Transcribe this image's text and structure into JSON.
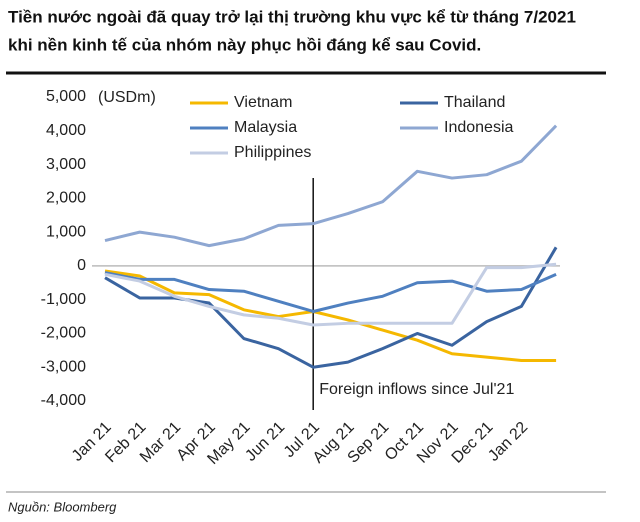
{
  "chart_data": {
    "type": "line",
    "title": [
      "Tiền nước ngoài đã quay trở lại thị trường khu vực kể từ tháng 7/2021",
      "khi nền kinh tế của nhóm này phục hồi đáng kể sau Covid."
    ],
    "y_unit": "(USDm)",
    "annotation": {
      "text": "Foreign inflows since Jul'21",
      "x": "Jul 21"
    },
    "source": "Nguồn: Bloomberg",
    "categories": [
      "Jan 21",
      "Feb 21",
      "Mar 21",
      "Apr 21",
      "May 21",
      "Jun 21",
      "Jul 21",
      "Aug 21",
      "Sep 21",
      "Oct 21",
      "Nov 21",
      "Dec 21",
      "Jan 22",
      null
    ],
    "series": [
      {
        "name": "Vietnam",
        "color": "#f5b800",
        "values": [
          -150,
          -300,
          -800,
          -850,
          -1300,
          -1500,
          -1350,
          -1600,
          -1900,
          -2200,
          -2600,
          -2700,
          -2800,
          -2800
        ]
      },
      {
        "name": "Thailand",
        "color": "#3a64a0",
        "values": [
          -350,
          -950,
          -950,
          -1100,
          -2150,
          -2450,
          -3000,
          -2850,
          -2450,
          -2000,
          -2350,
          -1650,
          -1200,
          550
        ]
      },
      {
        "name": "Malaysia",
        "color": "#4f80c0",
        "values": [
          -200,
          -400,
          -400,
          -700,
          -750,
          -1050,
          -1350,
          -1100,
          -900,
          -500,
          -450,
          -750,
          -700,
          -250
        ]
      },
      {
        "name": "Indonesia",
        "color": "#8ea7d2",
        "values": [
          750,
          1000,
          850,
          600,
          800,
          1200,
          1250,
          1550,
          1900,
          2800,
          2600,
          2700,
          3100,
          4150
        ]
      },
      {
        "name": "Philippines",
        "color": "#c3cde3",
        "values": [
          -250,
          -450,
          -900,
          -1200,
          -1450,
          -1550,
          -1750,
          -1700,
          -1700,
          -1700,
          -1700,
          -50,
          -50,
          50
        ]
      }
    ],
    "ylim": [
      -4000,
      5000
    ],
    "yticks": [
      {
        "value": 5000,
        "label": "5,000"
      },
      {
        "value": 4000,
        "label": "4,000"
      },
      {
        "value": 3000,
        "label": "3,000"
      },
      {
        "value": 2000,
        "label": "2,000"
      },
      {
        "value": 1000,
        "label": "1,000"
      },
      0,
      {
        "value": -1000,
        "label": "-1,000"
      },
      {
        "value": -2000,
        "label": "-2,000"
      },
      {
        "value": -3000,
        "label": "-3,000"
      },
      {
        "value": -4000,
        "label": "-4,000"
      }
    ]
  }
}
